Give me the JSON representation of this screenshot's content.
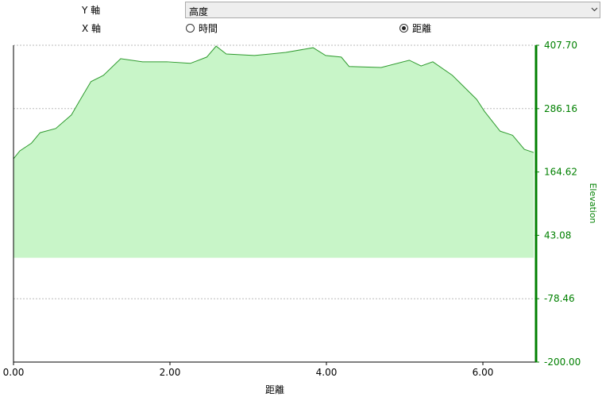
{
  "controls": {
    "y_axis_label": "Y 軸",
    "y_select": "高度",
    "x_axis_label": "X 軸",
    "x_options": [
      {
        "label": "時間",
        "checked": false
      },
      {
        "label": "距離",
        "checked": true
      }
    ]
  },
  "chart_data": {
    "type": "area",
    "x_label": "距離",
    "y_label": "Elevation",
    "x": [
      0,
      0.08,
      0.23,
      0.34,
      0.54,
      0.74,
      0.84,
      0.99,
      1.15,
      1.37,
      1.65,
      1.96,
      2.26,
      2.47,
      2.59,
      2.72,
      3.08,
      3.28,
      3.48,
      3.83,
      3.99,
      4.19,
      4.29,
      4.7,
      5.06,
      5.21,
      5.36,
      5.61,
      5.92,
      6.02,
      6.22,
      6.38,
      6.53,
      6.65
    ],
    "series": [
      {
        "name": "Elevation",
        "color": "#2e9a2e",
        "fill": "#c8f5c8",
        "axis": "y2",
        "values": [
          190,
          205,
          220,
          240,
          248,
          274,
          300,
          338,
          350,
          382,
          376,
          376,
          373,
          385,
          406,
          391,
          388,
          391,
          394,
          403,
          388,
          385,
          367,
          365,
          379,
          368,
          376,
          350,
          304,
          281,
          243,
          235,
          208,
          202
        ]
      }
    ],
    "xlim": [
      0,
      6.68
    ],
    "xticks": [
      {
        "value": 0,
        "label": "0.00"
      },
      {
        "value": 2,
        "label": "2.00"
      },
      {
        "value": 4,
        "label": "4.00"
      },
      {
        "value": 6,
        "label": "6.00"
      }
    ],
    "y2lim": [
      -200,
      407.7
    ],
    "y2ticks": [
      {
        "value": -200,
        "label": "-200.00"
      },
      -78.46,
      43.08,
      164.62,
      286.16,
      {
        "value": 407.7,
        "label": "407.70"
      }
    ],
    "axis_color": "#008000",
    "grid": true
  }
}
